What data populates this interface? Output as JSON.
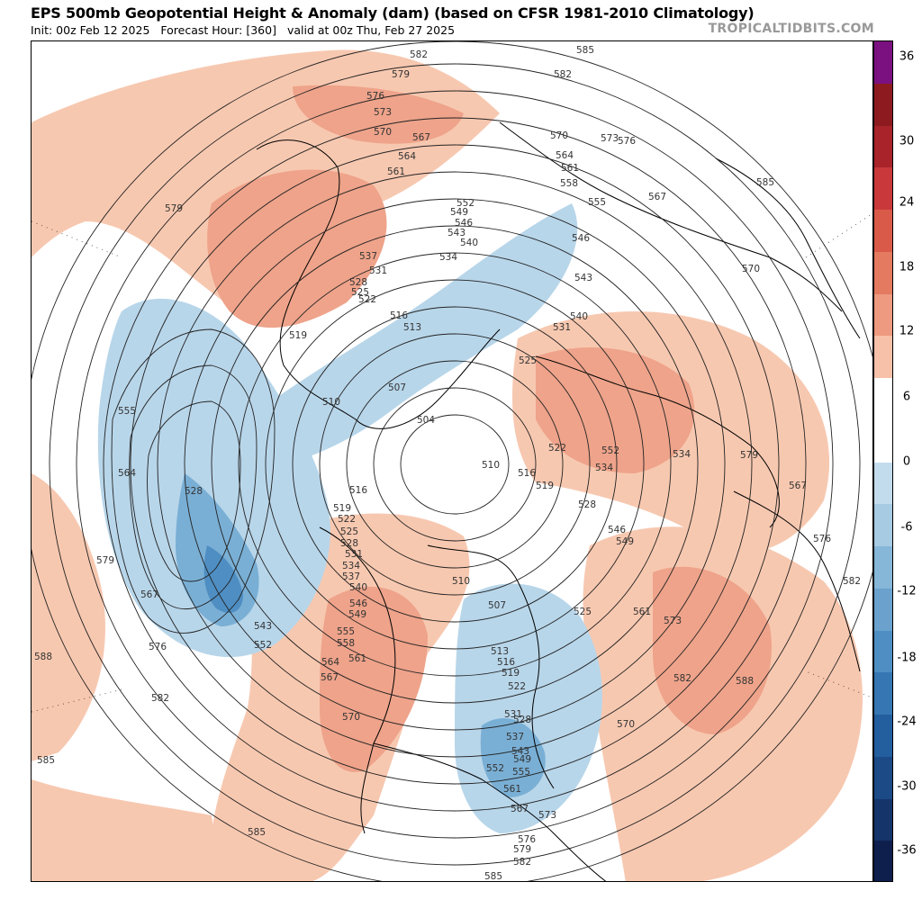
{
  "title": "EPS 500mb Geopotential Height & Anomaly (dam) (based on CFSR 1981-2010 Climatology)",
  "init_text": "Init: 00z Feb 12 2025",
  "forecast_hour_text": "Forecast Hour: [360]",
  "valid_text": "valid at 00z Thu, Feb 27 2025",
  "brand": "TROPICALTIDBITS.COM",
  "colorbar": {
    "ticks": [
      "36",
      "30",
      "24",
      "18",
      "12",
      "6",
      "0",
      "-6",
      "-12",
      "-18",
      "-24",
      "-30",
      "-36"
    ],
    "colors": [
      "#7b1180",
      "#8c1a1e",
      "#a8232a",
      "#c9393b",
      "#da5a4a",
      "#e47a60",
      "#ee9a80",
      "#f6c1a8",
      "#ffffff",
      "#ffffff",
      "#c3dced",
      "#a6cbe3",
      "#86b6d8",
      "#6aa2cd",
      "#4f8ec2",
      "#3676b2",
      "#235e9e",
      "#1b4a86",
      "#15346a",
      "#0e1f4e"
    ]
  },
  "contour_labels": [
    "582",
    "585",
    "579",
    "582",
    "576",
    "573",
    "570",
    "567",
    "564",
    "561",
    "552",
    "549",
    "546",
    "543",
    "540",
    "537",
    "534",
    "531",
    "528",
    "525",
    "522",
    "516",
    "513",
    "510",
    "507",
    "504",
    "519",
    "579",
    "555",
    "564",
    "528",
    "579",
    "567",
    "588",
    "576",
    "543",
    "552",
    "582",
    "585",
    "585",
    "519",
    "516",
    "522",
    "525",
    "528",
    "531",
    "534",
    "537",
    "540",
    "546",
    "549",
    "555",
    "558",
    "564",
    "561",
    "567",
    "570",
    "510",
    "507",
    "513",
    "516",
    "519",
    "522",
    "528",
    "531",
    "537",
    "543",
    "549",
    "552",
    "555",
    "561",
    "567",
    "573",
    "576",
    "579",
    "582",
    "585",
    "570",
    "525",
    "510",
    "516",
    "519",
    "528",
    "534",
    "540",
    "531",
    "525",
    "522",
    "534",
    "552",
    "546",
    "549",
    "561",
    "573",
    "582",
    "588",
    "543",
    "546",
    "555",
    "558",
    "561",
    "564",
    "570",
    "573",
    "576",
    "567",
    "585",
    "570",
    "579",
    "567",
    "576",
    "582",
    "585"
  ]
}
